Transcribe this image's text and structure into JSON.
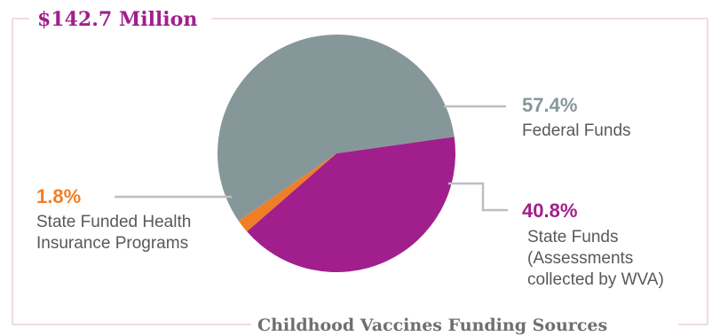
{
  "chart_data": {
    "type": "pie",
    "title": "$142.7 Million",
    "caption": "Childhood Vaccines Funding Sources",
    "slices": [
      {
        "percent_label": "57.4%",
        "value": 57.4,
        "label_lines": [
          "Federal Funds"
        ],
        "color": "#869799"
      },
      {
        "percent_label": "40.8%",
        "value": 40.8,
        "label_lines": [
          "State Funds",
          "(Assessments",
          "collected by WVA)"
        ],
        "color": "#a11f8c"
      },
      {
        "percent_label": "1.8%",
        "value": 1.8,
        "label_lines": [
          "State Funded Health",
          "Insurance Programs"
        ],
        "color": "#f07e26"
      }
    ]
  },
  "colors": {
    "frame": "#f0dbe9",
    "title": "#a11f8c",
    "caption": "#6d6f71",
    "leader": "#bcbec0"
  }
}
